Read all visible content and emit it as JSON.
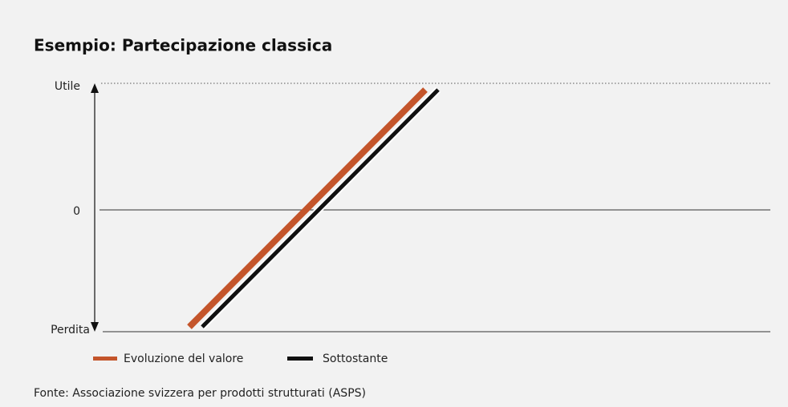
{
  "title": "Esempio: Partecipazione classica",
  "axis_labels": {
    "top": "Utile",
    "middle": "0",
    "bottom": "Perdita"
  },
  "legend": [
    "Evoluzione del valore",
    "Sottostante"
  ],
  "source": "Fonte: Associazione svizzera per prodotti strutturati (ASPS)"
}
